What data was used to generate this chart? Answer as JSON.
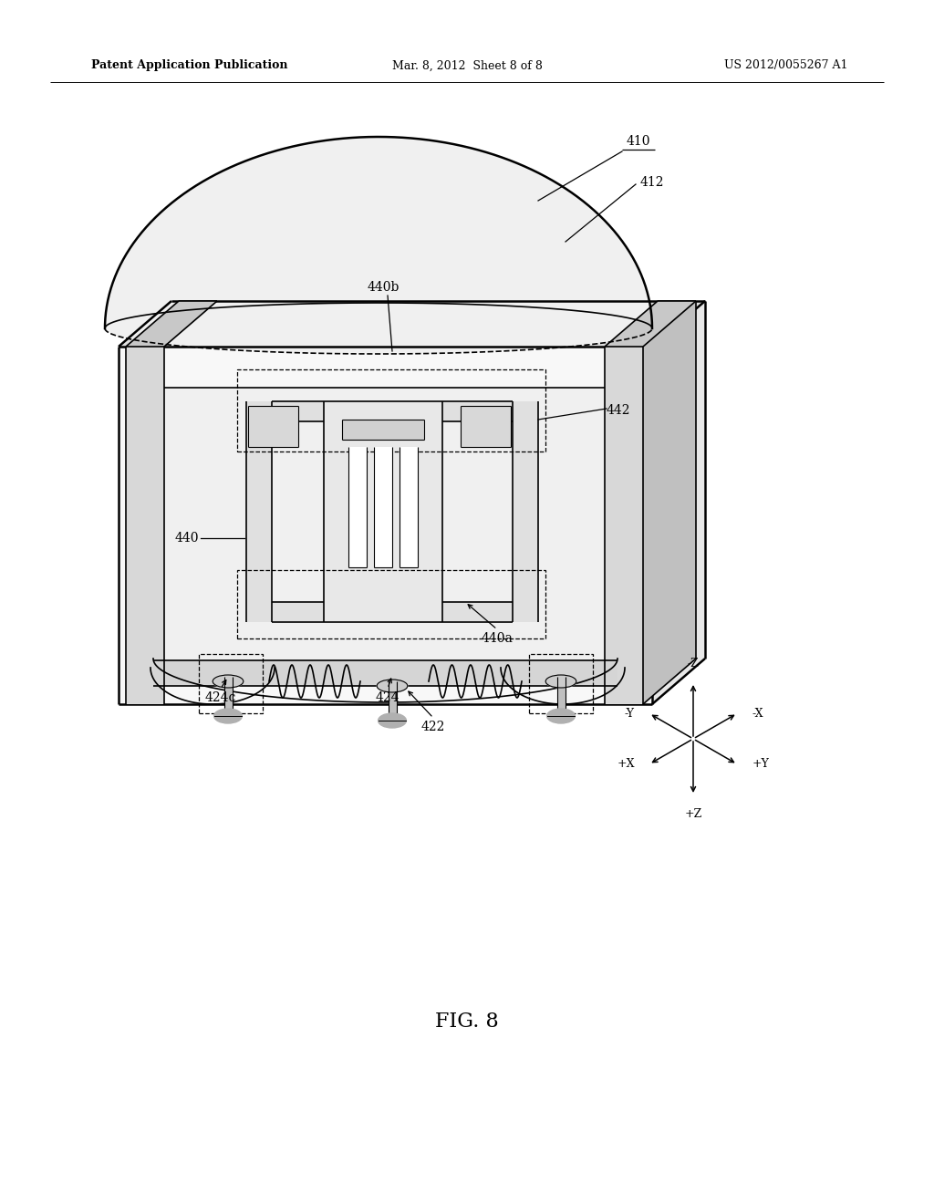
{
  "bg_color": "#ffffff",
  "line_color": "#000000",
  "fig_width": 10.24,
  "fig_height": 13.2,
  "header_left": "Patent Application Publication",
  "header_center": "Mar. 8, 2012  Sheet 8 of 8",
  "header_right": "US 2012/0055267 A1",
  "footer_label": "FIG. 8",
  "lw_thick": 1.8,
  "lw_main": 1.2,
  "lw_thin": 0.8,
  "lw_dash": 0.9,
  "fs_label": 10,
  "fs_header": 9,
  "fs_fig": 16
}
